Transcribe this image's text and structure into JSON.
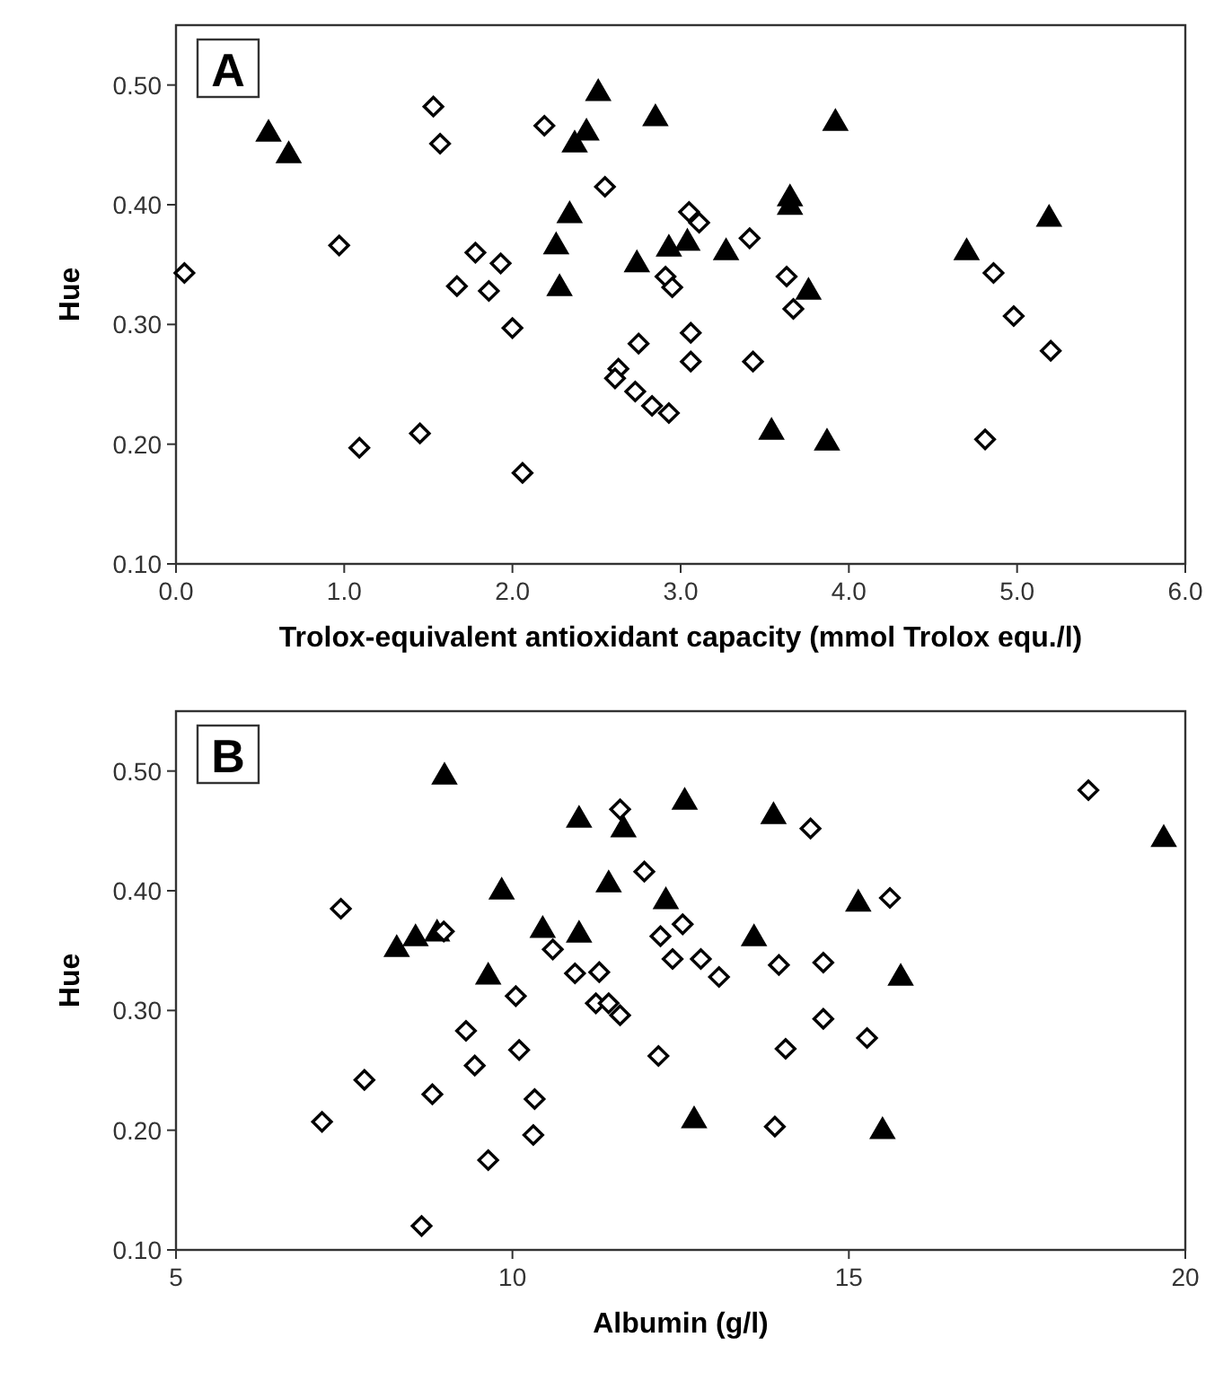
{
  "chart_data": [
    {
      "type": "scatter",
      "xlabel": "Trolox-equivalent antioxidant capacity (mmol Trolox equ./l)",
      "ylabel": "Hue",
      "annotations": [
        "A"
      ],
      "xlim": [
        0,
        6
      ],
      "xticks": [
        {
          "value": 0,
          "label": "0.0"
        },
        {
          "value": 1,
          "label": "1.0"
        },
        {
          "value": 2,
          "label": "2.0"
        },
        {
          "value": 3,
          "label": "3.0"
        },
        {
          "value": 4,
          "label": "4.0"
        },
        {
          "value": 5,
          "label": "5.0"
        },
        {
          "value": 6,
          "label": "6.0"
        }
      ],
      "ylim": [
        0.1,
        0.55
      ],
      "yticks": [
        {
          "value": 0.1,
          "label": "0.10"
        },
        {
          "value": 0.2,
          "label": "0.20"
        },
        {
          "value": 0.3,
          "label": "0.30"
        },
        {
          "value": 0.4,
          "label": "0.40"
        },
        {
          "value": 0.5,
          "label": "0.50"
        }
      ],
      "grid": false,
      "series": [
        {
          "color": "#000000",
          "marker": "diamond",
          "x": [
            0.05,
            0.97,
            1.09,
            1.45,
            1.53,
            1.57,
            1.67,
            1.78,
            1.86,
            1.93,
            2.0,
            2.06,
            2.19,
            2.55,
            2.63,
            2.61,
            2.75,
            2.73,
            2.83,
            2.93,
            3.05,
            3.11,
            2.91,
            2.95,
            3.06,
            3.06,
            3.41,
            3.43,
            3.63,
            3.67,
            4.86,
            4.98,
            5.2,
            4.81
          ],
          "values": [
            0.343,
            0.366,
            0.197,
            0.209,
            0.482,
            0.451,
            0.332,
            0.36,
            0.328,
            0.351,
            0.297,
            0.176,
            0.466,
            0.415,
            0.263,
            0.255,
            0.284,
            0.244,
            0.232,
            0.226,
            0.394,
            0.385,
            0.34,
            0.331,
            0.293,
            0.269,
            0.372,
            0.269,
            0.34,
            0.313,
            0.343,
            0.307,
            0.278,
            0.204
          ]
        },
        {
          "color": "#000000",
          "marker": "triangle",
          "x": [
            0.55,
            0.67,
            2.26,
            2.28,
            2.34,
            2.37,
            2.44,
            2.51,
            2.74,
            2.85,
            2.93,
            3.04,
            3.27,
            3.54,
            3.65,
            3.65,
            3.76,
            3.87,
            3.92,
            4.7,
            5.19
          ],
          "values": [
            0.459,
            0.441,
            0.365,
            0.33,
            0.391,
            0.45,
            0.46,
            0.493,
            0.35,
            0.472,
            0.363,
            0.368,
            0.36,
            0.21,
            0.405,
            0.398,
            0.327,
            0.201,
            0.468,
            0.36,
            0.388
          ]
        }
      ]
    },
    {
      "type": "scatter",
      "xlabel": "Albumin (g/l)",
      "ylabel": "Hue",
      "annotations": [
        "B"
      ],
      "xlim": [
        5,
        20
      ],
      "xticks": [
        5,
        10,
        15,
        20
      ],
      "ylim": [
        0.1,
        0.55
      ],
      "yticks": [
        {
          "value": 0.1,
          "label": "0.10"
        },
        {
          "value": 0.2,
          "label": "0.20"
        },
        {
          "value": 0.3,
          "label": "0.30"
        },
        {
          "value": 0.4,
          "label": "0.40"
        },
        {
          "value": 0.5,
          "label": "0.50"
        }
      ],
      "grid": false,
      "series": [
        {
          "color": "#000000",
          "marker": "diamond",
          "x": [
            7.45,
            8.98,
            7.17,
            7.8,
            8.81,
            9.31,
            9.44,
            9.64,
            10.05,
            10.1,
            10.33,
            10.31,
            10.6,
            10.93,
            11.29,
            11.24,
            11.43,
            11.6,
            11.6,
            11.96,
            12.53,
            12.2,
            12.38,
            12.8,
            13.07,
            13.96,
            14.62,
            14.43,
            15.61,
            18.56,
            14.62,
            15.27,
            14.06,
            12.17,
            13.9,
            8.65
          ],
          "values": [
            0.385,
            0.366,
            0.207,
            0.242,
            0.23,
            0.283,
            0.254,
            0.175,
            0.312,
            0.267,
            0.226,
            0.196,
            0.351,
            0.331,
            0.332,
            0.306,
            0.306,
            0.296,
            0.468,
            0.416,
            0.372,
            0.362,
            0.343,
            0.343,
            0.328,
            0.338,
            0.34,
            0.452,
            0.394,
            0.484,
            0.293,
            0.277,
            0.268,
            0.262,
            0.203,
            0.12
          ]
        },
        {
          "color": "#000000",
          "marker": "triangle",
          "x": [
            8.99,
            8.28,
            8.56,
            8.88,
            9.64,
            9.84,
            10.45,
            10.99,
            10.99,
            11.43,
            11.65,
            12.56,
            13.88,
            12.28,
            15.14,
            13.59,
            15.77,
            12.7,
            15.5,
            19.68
          ],
          "values": [
            0.495,
            0.351,
            0.36,
            0.364,
            0.328,
            0.399,
            0.367,
            0.459,
            0.363,
            0.405,
            0.451,
            0.474,
            0.462,
            0.391,
            0.389,
            0.36,
            0.327,
            0.208,
            0.199,
            0.443
          ]
        }
      ]
    }
  ]
}
